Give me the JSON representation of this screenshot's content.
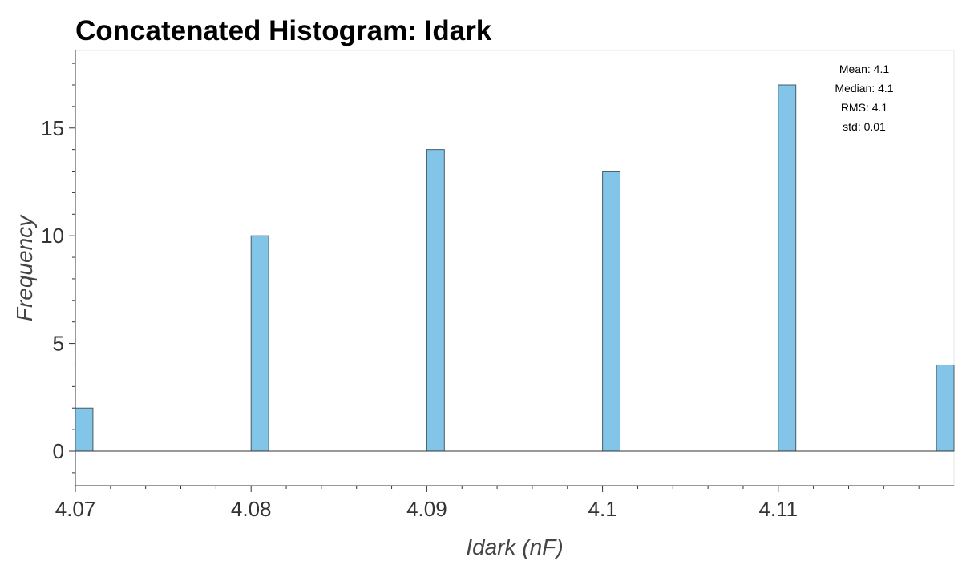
{
  "chart_data": {
    "type": "bar",
    "title": "Concatenated Histogram: Idark",
    "xlabel": "Idark (nF)",
    "ylabel": "Frequency",
    "x": [
      4.0705,
      4.0805,
      4.0905,
      4.1005,
      4.1105,
      4.1195
    ],
    "values": [
      2,
      10,
      14,
      13,
      17,
      4
    ],
    "bin_width": 0.001,
    "xlim": [
      4.07,
      4.12
    ],
    "ylim": [
      -1.6,
      18.6
    ],
    "xticks": [
      4.07,
      4.08,
      4.09,
      4.1,
      4.11
    ],
    "xtick_labels": [
      "4.07",
      "4.08",
      "4.09",
      "4.1",
      "4.11"
    ],
    "yticks": [
      0,
      5,
      10,
      15
    ],
    "ytick_labels": [
      "0",
      "5",
      "10",
      "15"
    ],
    "bar_color": "#83c5e8",
    "edge_color": "#4a5a66",
    "stats": [
      "Mean: 4.1",
      "Median: 4.1",
      "RMS: 4.1",
      "std: 0.01"
    ],
    "grid": false
  }
}
